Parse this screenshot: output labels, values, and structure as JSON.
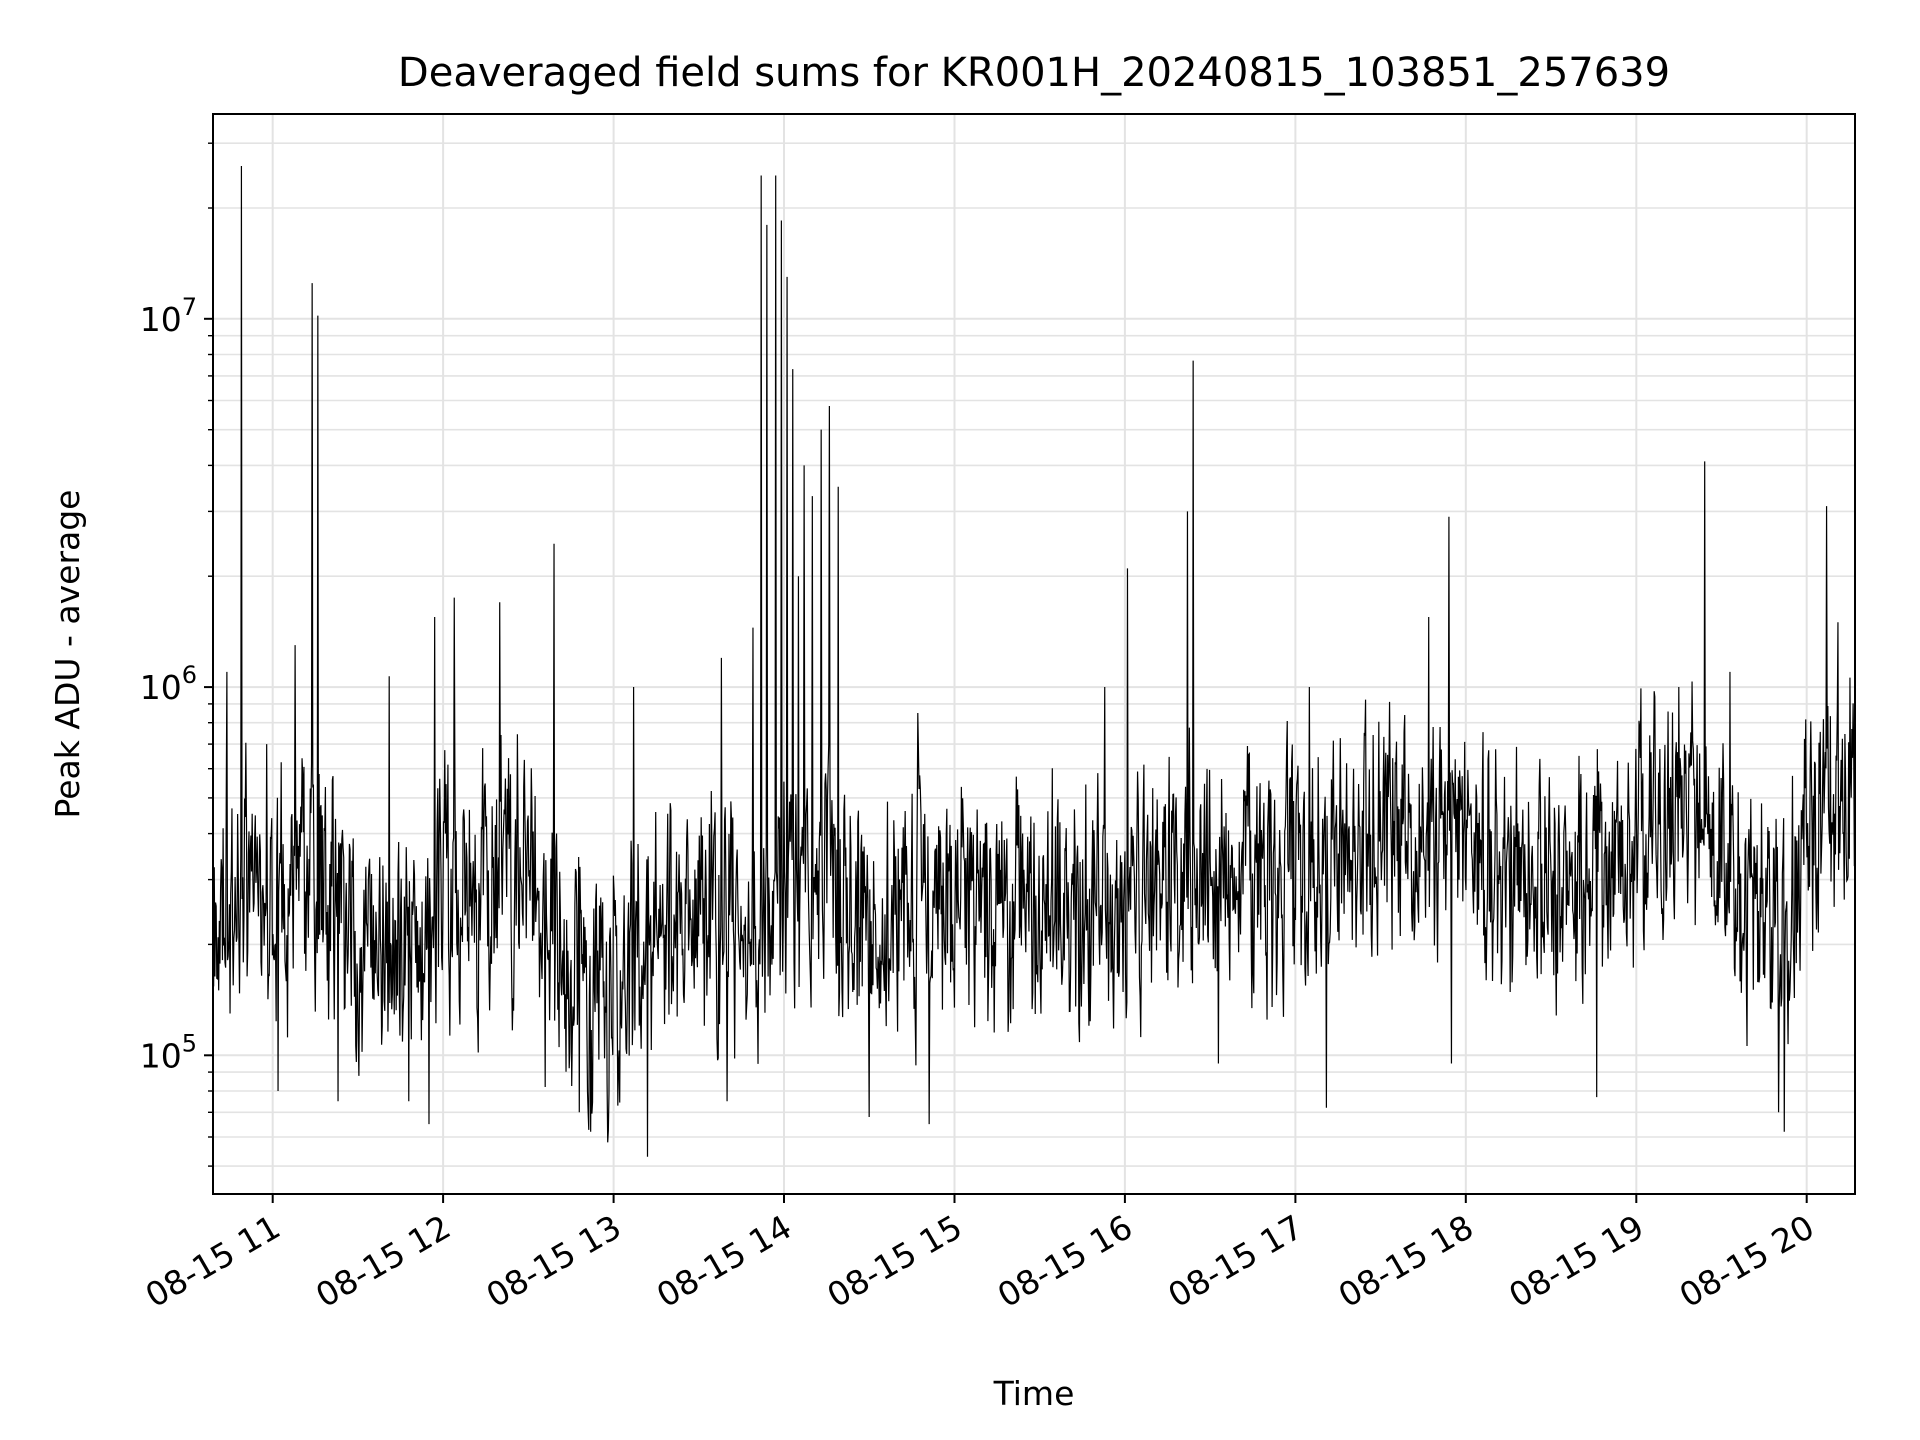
{
  "chart_data": {
    "type": "line",
    "title": "Deaveraged field sums for KR001H_20240815_103851_257639",
    "xlabel": "Time",
    "ylabel": "Peak ADU - average",
    "x_type": "datetime",
    "x_start": "2024-08-15 10:39",
    "x_end": "2024-08-15 20:17",
    "xlim": [
      "2024-08-15 10:39",
      "2024-08-15 20:17"
    ],
    "y_scale": "log",
    "ylim": [
      42000,
      36000000
    ],
    "grid": true,
    "x_ticks": [
      {
        "hour": 11,
        "label": "08-15 11"
      },
      {
        "hour": 12,
        "label": "08-15 12"
      },
      {
        "hour": 13,
        "label": "08-15 13"
      },
      {
        "hour": 14,
        "label": "08-15 14"
      },
      {
        "hour": 15,
        "label": "08-15 15"
      },
      {
        "hour": 16,
        "label": "08-15 16"
      },
      {
        "hour": 17,
        "label": "08-15 17"
      },
      {
        "hour": 18,
        "label": "08-15 18"
      },
      {
        "hour": 19,
        "label": "08-15 19"
      },
      {
        "hour": 20,
        "label": "08-15 20"
      }
    ],
    "y_ticks": [
      {
        "value": 100000,
        "base": "10",
        "exp": "5"
      },
      {
        "value": 1000000,
        "base": "10",
        "exp": "6"
      },
      {
        "value": 10000000,
        "base": "10",
        "exp": "7"
      }
    ],
    "baseline": [
      {
        "t": "2024-08-15 10:39",
        "y": 250000
      },
      {
        "t": "2024-08-15 11:00",
        "y": 280000
      },
      {
        "t": "2024-08-15 11:15",
        "y": 320000
      },
      {
        "t": "2024-08-15 11:30",
        "y": 200000
      },
      {
        "t": "2024-08-15 11:50",
        "y": 230000
      },
      {
        "t": "2024-08-15 12:10",
        "y": 280000
      },
      {
        "t": "2024-08-15 12:30",
        "y": 330000
      },
      {
        "t": "2024-08-15 12:45",
        "y": 170000
      },
      {
        "t": "2024-08-15 13:00",
        "y": 160000
      },
      {
        "t": "2024-08-15 13:20",
        "y": 220000
      },
      {
        "t": "2024-08-15 13:45",
        "y": 250000
      },
      {
        "t": "2024-08-15 14:10",
        "y": 300000
      },
      {
        "t": "2024-08-15 14:30",
        "y": 230000
      },
      {
        "t": "2024-08-15 15:00",
        "y": 250000
      },
      {
        "t": "2024-08-15 15:30",
        "y": 280000
      },
      {
        "t": "2024-08-15 16:00",
        "y": 260000
      },
      {
        "t": "2024-08-15 16:20",
        "y": 350000
      },
      {
        "t": "2024-08-15 16:45",
        "y": 320000
      },
      {
        "t": "2024-08-15 17:00",
        "y": 300000
      },
      {
        "t": "2024-08-15 17:20",
        "y": 400000
      },
      {
        "t": "2024-08-15 17:40",
        "y": 380000
      },
      {
        "t": "2024-08-15 18:00",
        "y": 370000
      },
      {
        "t": "2024-08-15 18:20",
        "y": 300000
      },
      {
        "t": "2024-08-15 18:40",
        "y": 280000
      },
      {
        "t": "2024-08-15 19:00",
        "y": 380000
      },
      {
        "t": "2024-08-15 19:20",
        "y": 500000
      },
      {
        "t": "2024-08-15 19:40",
        "y": 230000
      },
      {
        "t": "2024-08-15 19:55",
        "y": 300000
      },
      {
        "t": "2024-08-15 20:05",
        "y": 450000
      },
      {
        "t": "2024-08-15 20:17",
        "y": 580000
      }
    ],
    "spikes": [
      {
        "t": "2024-08-15 10:44",
        "y": 1100000
      },
      {
        "t": "2024-08-15 10:49",
        "y": 26000000
      },
      {
        "t": "2024-08-15 10:58",
        "y": 700000
      },
      {
        "t": "2024-08-15 11:08",
        "y": 1300000
      },
      {
        "t": "2024-08-15 11:14",
        "y": 12500000
      },
      {
        "t": "2024-08-15 11:16",
        "y": 10200000
      },
      {
        "t": "2024-08-15 11:41",
        "y": 1070000
      },
      {
        "t": "2024-08-15 11:57",
        "y": 1550000
      },
      {
        "t": "2024-08-15 12:04",
        "y": 1750000
      },
      {
        "t": "2024-08-15 12:20",
        "y": 1700000
      },
      {
        "t": "2024-08-15 12:39",
        "y": 2450000
      },
      {
        "t": "2024-08-15 13:07",
        "y": 1000000
      },
      {
        "t": "2024-08-15 13:38",
        "y": 1200000
      },
      {
        "t": "2024-08-15 13:49",
        "y": 1450000
      },
      {
        "t": "2024-08-15 13:52",
        "y": 24500000
      },
      {
        "t": "2024-08-15 13:54",
        "y": 18000000
      },
      {
        "t": "2024-08-15 13:57",
        "y": 24500000
      },
      {
        "t": "2024-08-15 13:59",
        "y": 18500000
      },
      {
        "t": "2024-08-15 14:01",
        "y": 13000000
      },
      {
        "t": "2024-08-15 14:03",
        "y": 7300000
      },
      {
        "t": "2024-08-15 14:05",
        "y": 2000000
      },
      {
        "t": "2024-08-15 14:07",
        "y": 4000000
      },
      {
        "t": "2024-08-15 14:10",
        "y": 3300000
      },
      {
        "t": "2024-08-15 14:13",
        "y": 5000000
      },
      {
        "t": "2024-08-15 14:16",
        "y": 5800000
      },
      {
        "t": "2024-08-15 14:19",
        "y": 3500000
      },
      {
        "t": "2024-08-15 14:47",
        "y": 850000
      },
      {
        "t": "2024-08-15 15:53",
        "y": 1000000
      },
      {
        "t": "2024-08-15 16:01",
        "y": 2100000
      },
      {
        "t": "2024-08-15 16:22",
        "y": 3000000
      },
      {
        "t": "2024-08-15 16:24",
        "y": 7700000
      },
      {
        "t": "2024-08-15 17:05",
        "y": 1000000
      },
      {
        "t": "2024-08-15 17:47",
        "y": 1550000
      },
      {
        "t": "2024-08-15 17:54",
        "y": 2900000
      },
      {
        "t": "2024-08-15 19:15",
        "y": 1000000
      },
      {
        "t": "2024-08-15 19:24",
        "y": 4100000
      },
      {
        "t": "2024-08-15 19:33",
        "y": 1100000
      },
      {
        "t": "2024-08-15 20:07",
        "y": 3100000
      },
      {
        "t": "2024-08-15 20:11",
        "y": 1500000
      }
    ],
    "dips": [
      {
        "t": "2024-08-15 11:02",
        "y": 80000
      },
      {
        "t": "2024-08-15 11:23",
        "y": 75000
      },
      {
        "t": "2024-08-15 11:48",
        "y": 75000
      },
      {
        "t": "2024-08-15 11:55",
        "y": 65000
      },
      {
        "t": "2024-08-15 12:36",
        "y": 82000
      },
      {
        "t": "2024-08-15 12:48",
        "y": 70000
      },
      {
        "t": "2024-08-15 12:52",
        "y": 62000
      },
      {
        "t": "2024-08-15 12:58",
        "y": 58000
      },
      {
        "t": "2024-08-15 13:12",
        "y": 53000
      },
      {
        "t": "2024-08-15 13:40",
        "y": 75000
      },
      {
        "t": "2024-08-15 14:30",
        "y": 68000
      },
      {
        "t": "2024-08-15 14:51",
        "y": 65000
      },
      {
        "t": "2024-08-15 16:33",
        "y": 95000
      },
      {
        "t": "2024-08-15 17:11",
        "y": 72000
      },
      {
        "t": "2024-08-15 17:55",
        "y": 95000
      },
      {
        "t": "2024-08-15 18:46",
        "y": 77000
      },
      {
        "t": "2024-08-15 19:50",
        "y": 70000
      },
      {
        "t": "2024-08-15 19:52",
        "y": 62000
      }
    ]
  }
}
